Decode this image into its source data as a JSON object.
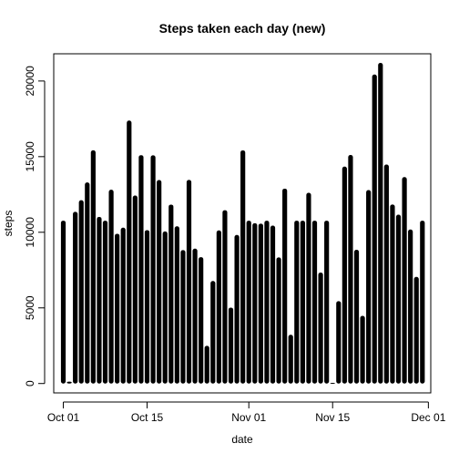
{
  "chart_data": {
    "type": "bar",
    "title": "Steps taken each day (new)",
    "xlabel": "date",
    "ylabel": "steps",
    "x_axis_type": "date",
    "xlim": [
      "2012-09-30",
      "2012-11-30"
    ],
    "ylim": [
      -620,
      21800
    ],
    "yticks": [
      0,
      5000,
      10000,
      15000,
      20000
    ],
    "xticks": [
      {
        "date": "2012-10-01",
        "label": "Oct 01"
      },
      {
        "date": "2012-10-15",
        "label": "Oct 15"
      },
      {
        "date": "2012-11-01",
        "label": "Nov 01"
      },
      {
        "date": "2012-11-15",
        "label": "Nov 15"
      },
      {
        "date": "2012-12-01",
        "label": "Dec 01"
      }
    ],
    "grid": false,
    "legend": "none",
    "bar_color": "#000000",
    "x": [
      "2012-10-01",
      "2012-10-02",
      "2012-10-03",
      "2012-10-04",
      "2012-10-05",
      "2012-10-06",
      "2012-10-07",
      "2012-10-08",
      "2012-10-09",
      "2012-10-10",
      "2012-10-11",
      "2012-10-12",
      "2012-10-13",
      "2012-10-14",
      "2012-10-15",
      "2012-10-16",
      "2012-10-17",
      "2012-10-18",
      "2012-10-19",
      "2012-10-20",
      "2012-10-21",
      "2012-10-22",
      "2012-10-23",
      "2012-10-24",
      "2012-10-25",
      "2012-10-26",
      "2012-10-27",
      "2012-10-28",
      "2012-10-29",
      "2012-10-30",
      "2012-10-31",
      "2012-11-01",
      "2012-11-02",
      "2012-11-03",
      "2012-11-04",
      "2012-11-05",
      "2012-11-06",
      "2012-11-07",
      "2012-11-08",
      "2012-11-09",
      "2012-11-10",
      "2012-11-11",
      "2012-11-12",
      "2012-11-13",
      "2012-11-14",
      "2012-11-15",
      "2012-11-16",
      "2012-11-17",
      "2012-11-18",
      "2012-11-19",
      "2012-11-20",
      "2012-11-21",
      "2012-11-22",
      "2012-11-23",
      "2012-11-24",
      "2012-11-25",
      "2012-11-26",
      "2012-11-27",
      "2012-11-28",
      "2012-11-29",
      "2012-11-30"
    ],
    "values": [
      10766,
      126,
      11352,
      12116,
      13294,
      15420,
      11015,
      10766,
      12811,
      9900,
      10304,
      17382,
      12426,
      15098,
      10139,
      15084,
      13452,
      10056,
      11829,
      10395,
      8821,
      13460,
      8918,
      8355,
      2492,
      6778,
      10119,
      11458,
      5018,
      9819,
      15414,
      10766,
      10600,
      10571,
      10766,
      10439,
      8334,
      12883,
      3219,
      10766,
      10766,
      12608,
      10765,
      7336,
      10766,
      41,
      5441,
      14339,
      15110,
      8841,
      4472,
      12787,
      20427,
      21194,
      14478,
      11834,
      11162,
      13646,
      10183,
      7047,
      10766
    ]
  }
}
